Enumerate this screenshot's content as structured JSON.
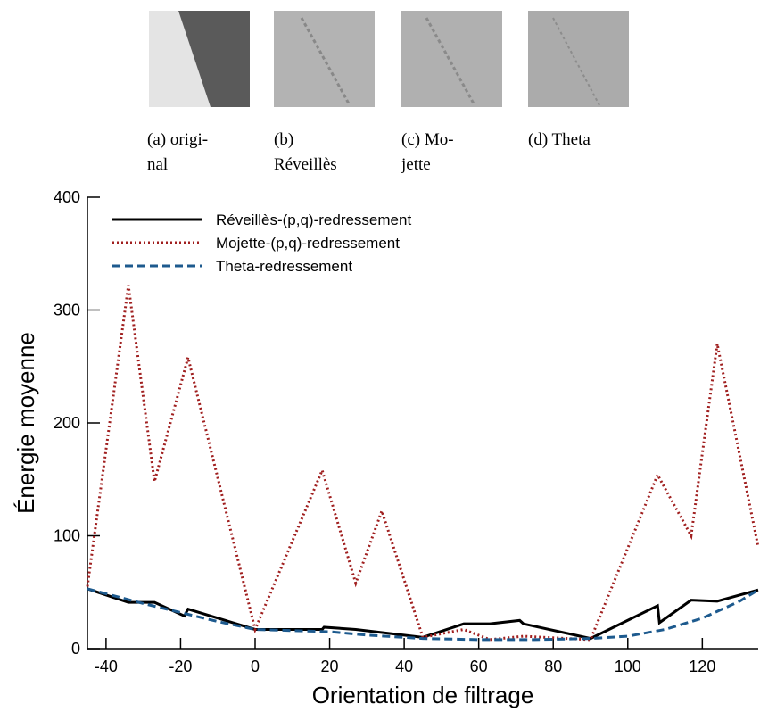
{
  "subfigures": [
    {
      "caption": [
        "(a)   origi-",
        "nal"
      ]
    },
    {
      "caption": [
        "(b)",
        "Réveillès"
      ]
    },
    {
      "caption": [
        "(c)      Mo-",
        "jette"
      ]
    },
    {
      "caption": [
        "(d) Theta"
      ]
    }
  ],
  "chart_data": {
    "type": "line",
    "xlabel": "Orientation de filtrage",
    "ylabel": "Énergie moyenne",
    "xlim": [
      -45,
      135
    ],
    "xticks": [
      -40,
      -20,
      0,
      20,
      40,
      60,
      80,
      100,
      120
    ],
    "ylim": [
      0,
      400
    ],
    "yticks": [
      0,
      100,
      200,
      300,
      400
    ],
    "legend": "upper-left",
    "series": [
      {
        "name": "Réveillès-(p,q)-redressement",
        "color": "#000000",
        "style": "solid",
        "x": [
          -45,
          -34,
          -27,
          -19,
          -18,
          0,
          18,
          18.5,
          27,
          45,
          56,
          63,
          71,
          72,
          90,
          108,
          108.5,
          117,
          124,
          135
        ],
        "values": [
          53,
          41,
          41,
          29,
          35,
          17,
          17,
          19,
          17,
          10,
          22,
          22,
          25,
          22,
          9,
          38,
          23,
          43,
          42,
          52
        ]
      },
      {
        "name": "Mojette-(p,q)-redressement",
        "color": "#a01f1f",
        "style": "dotted",
        "x": [
          -45,
          -34,
          -27,
          -18,
          0,
          18,
          27,
          34,
          45,
          56,
          63,
          72,
          90,
          108,
          117,
          124,
          135
        ],
        "values": [
          55,
          322,
          148,
          258,
          17,
          158,
          58,
          122,
          10,
          17,
          8,
          11,
          8,
          154,
          100,
          270,
          90
        ]
      },
      {
        "name": "Theta-redressement",
        "color": "#1d5a8e",
        "style": "dashed",
        "x": [
          -45,
          -30,
          -20,
          -10,
          0,
          10,
          20,
          30,
          45,
          60,
          75,
          90,
          100,
          110,
          120,
          130,
          135
        ],
        "values": [
          53,
          40,
          32,
          24,
          17,
          16,
          15,
          12,
          9,
          8,
          8,
          9,
          11,
          17,
          27,
          42,
          52
        ]
      }
    ]
  }
}
